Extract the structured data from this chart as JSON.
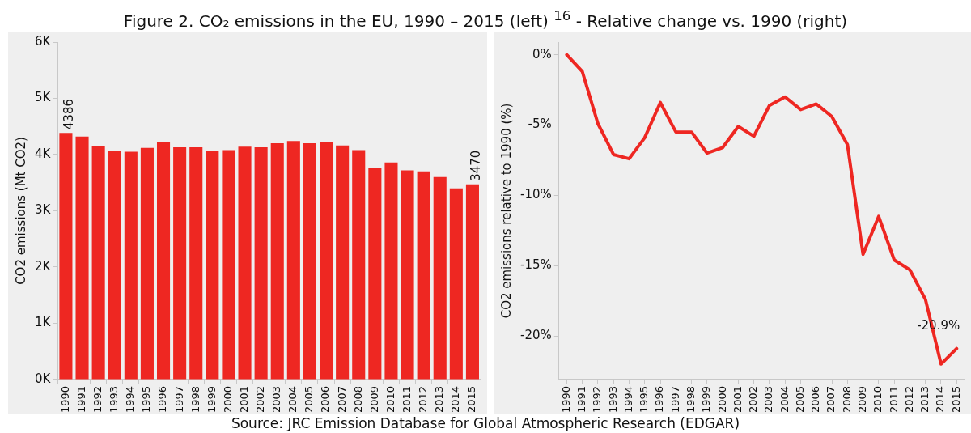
{
  "chart_data": [
    {
      "type": "bar",
      "title": "Figure 2. CO₂ emissions in the EU, 1990 – 2015 (left) $^{16}$ - Relative change vs. 1990 (right)",
      "annotations": [
        "Source: JRC Emission Database for Global Atmospheric Research (EDGAR)"
      ],
      "ylabel": "CO2 emissions (Mt CO2)",
      "categories": [
        "1990",
        "1991",
        "1992",
        "1993",
        "1994",
        "1995",
        "1996",
        "1997",
        "1998",
        "1999",
        "2000",
        "2001",
        "2002",
        "2003",
        "2004",
        "2005",
        "2006",
        "2007",
        "2008",
        "2009",
        "2010",
        "2011",
        "2012",
        "2013",
        "2014",
        "2015"
      ],
      "values": [
        4386,
        4320,
        4150,
        4060,
        4050,
        4120,
        4220,
        4130,
        4130,
        4060,
        4080,
        4140,
        4130,
        4200,
        4240,
        4200,
        4220,
        4160,
        4080,
        3760,
        3860,
        3720,
        3700,
        3600,
        3400,
        3470
      ],
      "value_labels": [
        "4386",
        null,
        null,
        null,
        null,
        null,
        null,
        null,
        null,
        null,
        null,
        null,
        null,
        null,
        null,
        null,
        null,
        null,
        null,
        null,
        null,
        null,
        null,
        null,
        null,
        "3470"
      ],
      "color": "#ee2722",
      "ylim": [
        0,
        6000
      ],
      "yticks": [
        {
          "value": 0,
          "label": "0K"
        },
        {
          "value": 1000,
          "label": "1K"
        },
        {
          "value": 2000,
          "label": "2K"
        },
        {
          "value": 3000,
          "label": "3K"
        },
        {
          "value": 4000,
          "label": "4K"
        },
        {
          "value": 5000,
          "label": "5K"
        },
        {
          "value": 6000,
          "label": "6K"
        }
      ],
      "grid": false,
      "legend": false
    },
    {
      "type": "line",
      "ylabel": "CO2 emissions relative to 1990 (%)",
      "categories": [
        "1990",
        "1991",
        "1992",
        "1993",
        "1994",
        "1995",
        "1996",
        "1997",
        "1998",
        "1999",
        "2000",
        "2001",
        "2002",
        "2003",
        "2004",
        "2005",
        "2006",
        "2007",
        "2008",
        "2009",
        "2010",
        "2011",
        "2012",
        "2013",
        "2014",
        "2015"
      ],
      "values": [
        0,
        -1.2,
        -4.9,
        -7.1,
        -7.4,
        -5.9,
        -3.4,
        -5.5,
        -5.5,
        -7.0,
        -6.6,
        -5.1,
        -5.8,
        -3.6,
        -3.0,
        -3.9,
        -3.5,
        -4.4,
        -6.4,
        -14.2,
        -11.5,
        -14.6,
        -15.3,
        -17.4,
        -22.0,
        -20.9
      ],
      "value_labels": [
        null,
        null,
        null,
        null,
        null,
        null,
        null,
        null,
        null,
        null,
        null,
        null,
        null,
        null,
        null,
        null,
        null,
        null,
        null,
        null,
        null,
        null,
        null,
        null,
        null,
        "-20.9%"
      ],
      "color": "#ee2722",
      "ylim": [
        -23.1,
        0.9
      ],
      "yticks": [
        {
          "value": -20,
          "label": "-20%"
        },
        {
          "value": -15,
          "label": "-15%"
        },
        {
          "value": -10,
          "label": "-10%"
        },
        {
          "value": -5,
          "label": "-5%"
        },
        {
          "value": 0,
          "label": "0%"
        }
      ],
      "grid": false,
      "legend": false,
      "marker": "none",
      "line_style": "solid"
    }
  ]
}
